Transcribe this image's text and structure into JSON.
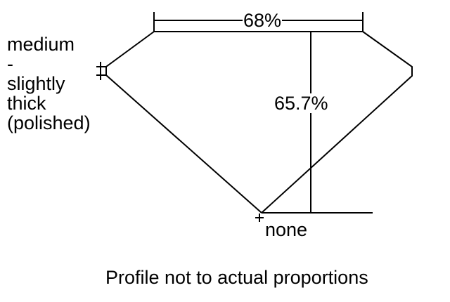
{
  "diagram": {
    "table_percent": "68%",
    "depth_percent": "65.7%",
    "girdle_label": [
      "medium",
      "-",
      "slightly",
      "thick",
      "(polished)"
    ],
    "culet_label": "none",
    "caption": "Profile not to actual proportions",
    "line_color": "#000000"
  }
}
